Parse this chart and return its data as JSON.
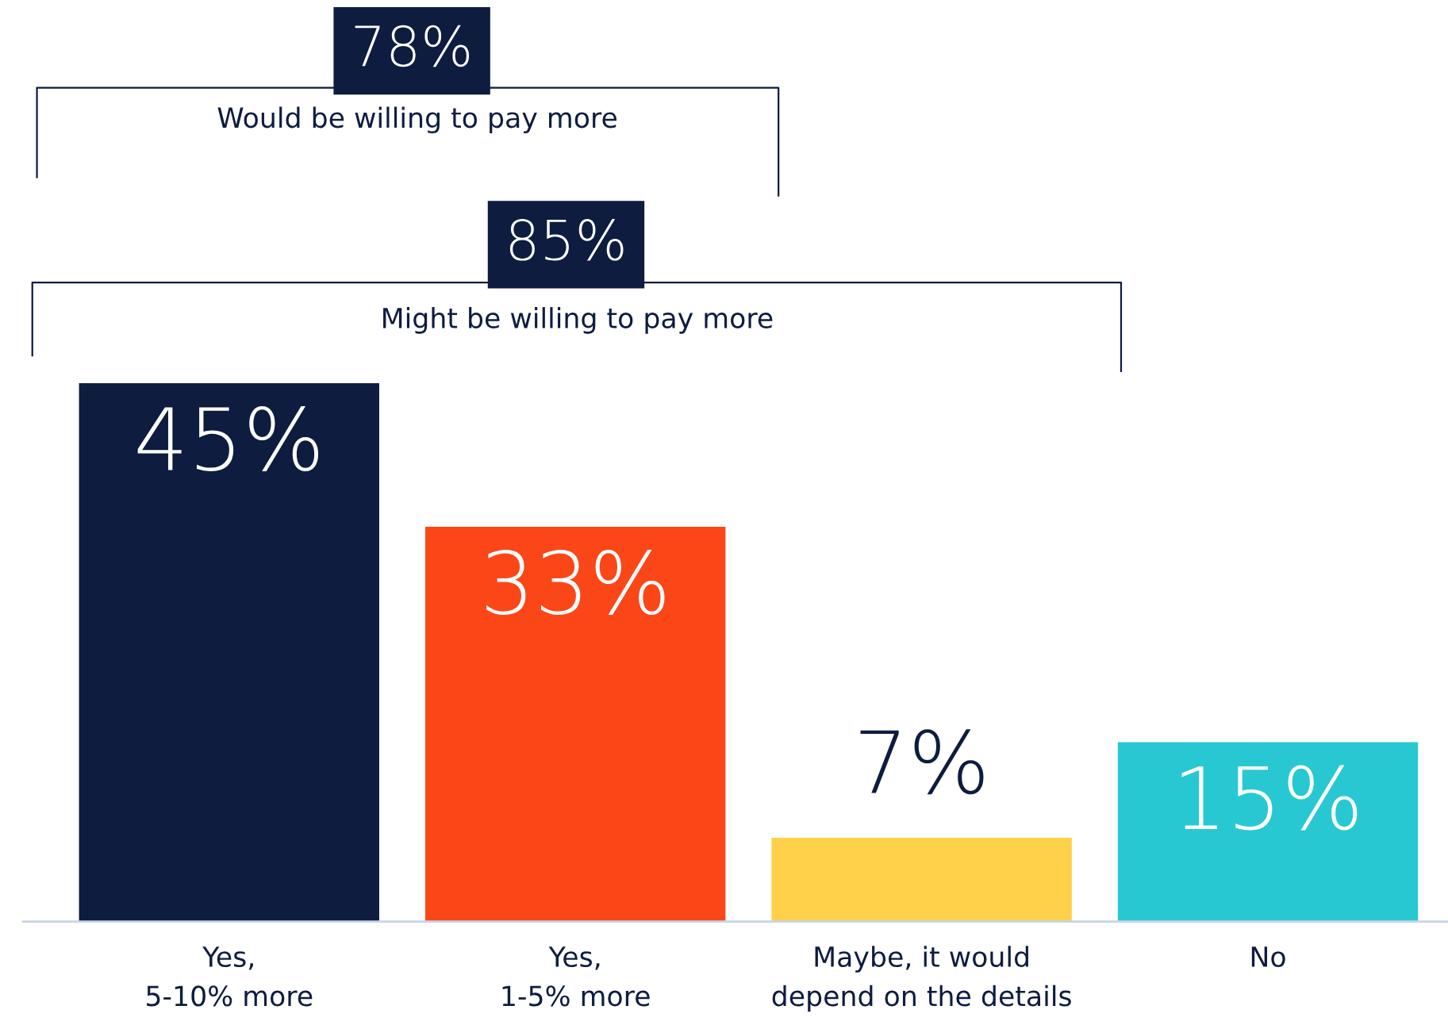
{
  "chart_data": {
    "type": "bar",
    "categories": [
      "Yes,\n5-10% more",
      "Yes,\n1-5% more",
      "Maybe, it would\ndepend on the details",
      "No"
    ],
    "values": [
      45,
      33,
      7,
      15
    ],
    "colors": [
      "#0e1c40",
      "#fb4718",
      "#ffd04a",
      "#28c8d2"
    ],
    "value_labels": [
      "45%",
      "33%",
      "7%",
      "15%"
    ],
    "annotations": [
      "78%",
      "Would be willing to pay more",
      "85%",
      "Might be willing to pay more"
    ],
    "grid": false,
    "legend": false
  }
}
